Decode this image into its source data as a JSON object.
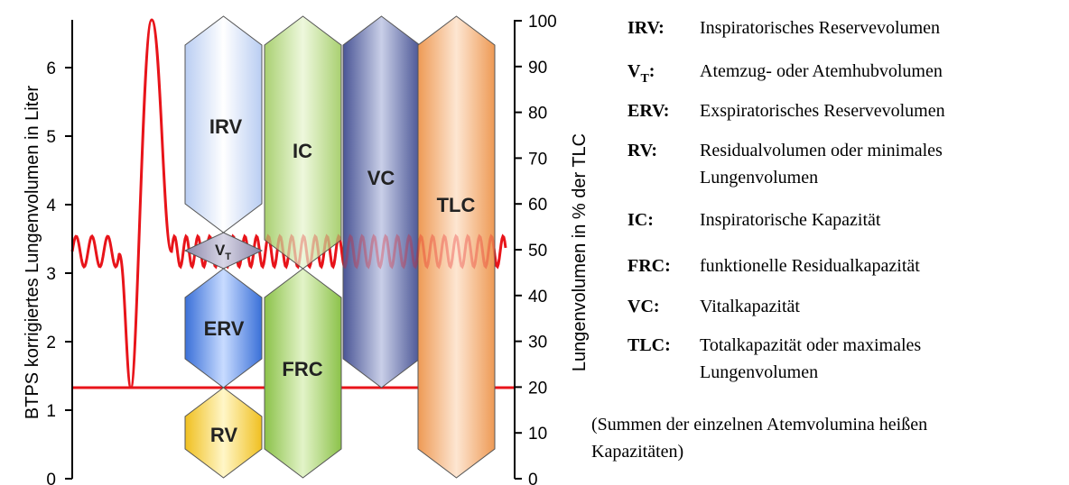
{
  "left_axis": {
    "label": "BTPS korrigiertes Lungenvolumen in Liter",
    "ticks": [
      0,
      1,
      2,
      3,
      4,
      5,
      6
    ]
  },
  "right_axis": {
    "label": "Lungenvolumen in % der TLC",
    "ticks": [
      0,
      10,
      20,
      30,
      40,
      50,
      60,
      70,
      80,
      90,
      100
    ]
  },
  "volumes": [
    {
      "label": "IRV"
    },
    {
      "label": "V",
      "subscript": "T"
    },
    {
      "label": "ERV"
    },
    {
      "label": "RV"
    },
    {
      "label": "IC"
    },
    {
      "label": "FRC"
    },
    {
      "label": "VC"
    },
    {
      "label": "TLC"
    }
  ],
  "legend": [
    {
      "term": "IRV:",
      "lines": [
        "Inspiratorisches Reservevolumen"
      ]
    },
    {
      "term": "V",
      "subscript": "T",
      "suffix": ":",
      "lines": [
        "Atemzug- oder Atemhubvolumen"
      ]
    },
    {
      "term": "ERV:",
      "lines": [
        "Exspiratorisches Reservevolumen"
      ]
    },
    {
      "term": "RV:",
      "lines": [
        "Residualvolumen oder minimales",
        "Lungenvolumen"
      ]
    },
    {
      "term": "IC:",
      "lines": [
        "Inspiratorische Kapazität"
      ]
    },
    {
      "term": "FRC:",
      "lines": [
        "funktionelle Residualkapazität"
      ]
    },
    {
      "term": "VC:",
      "lines": [
        "Vitalkapazität"
      ]
    },
    {
      "term": "TLC:",
      "lines": [
        "Totalkapazität oder maximales",
        "Lungenvolumen"
      ]
    }
  ],
  "note": [
    "(Summen der einzelnen Atemvolumina heißen",
    "Kapazitäten)"
  ]
}
